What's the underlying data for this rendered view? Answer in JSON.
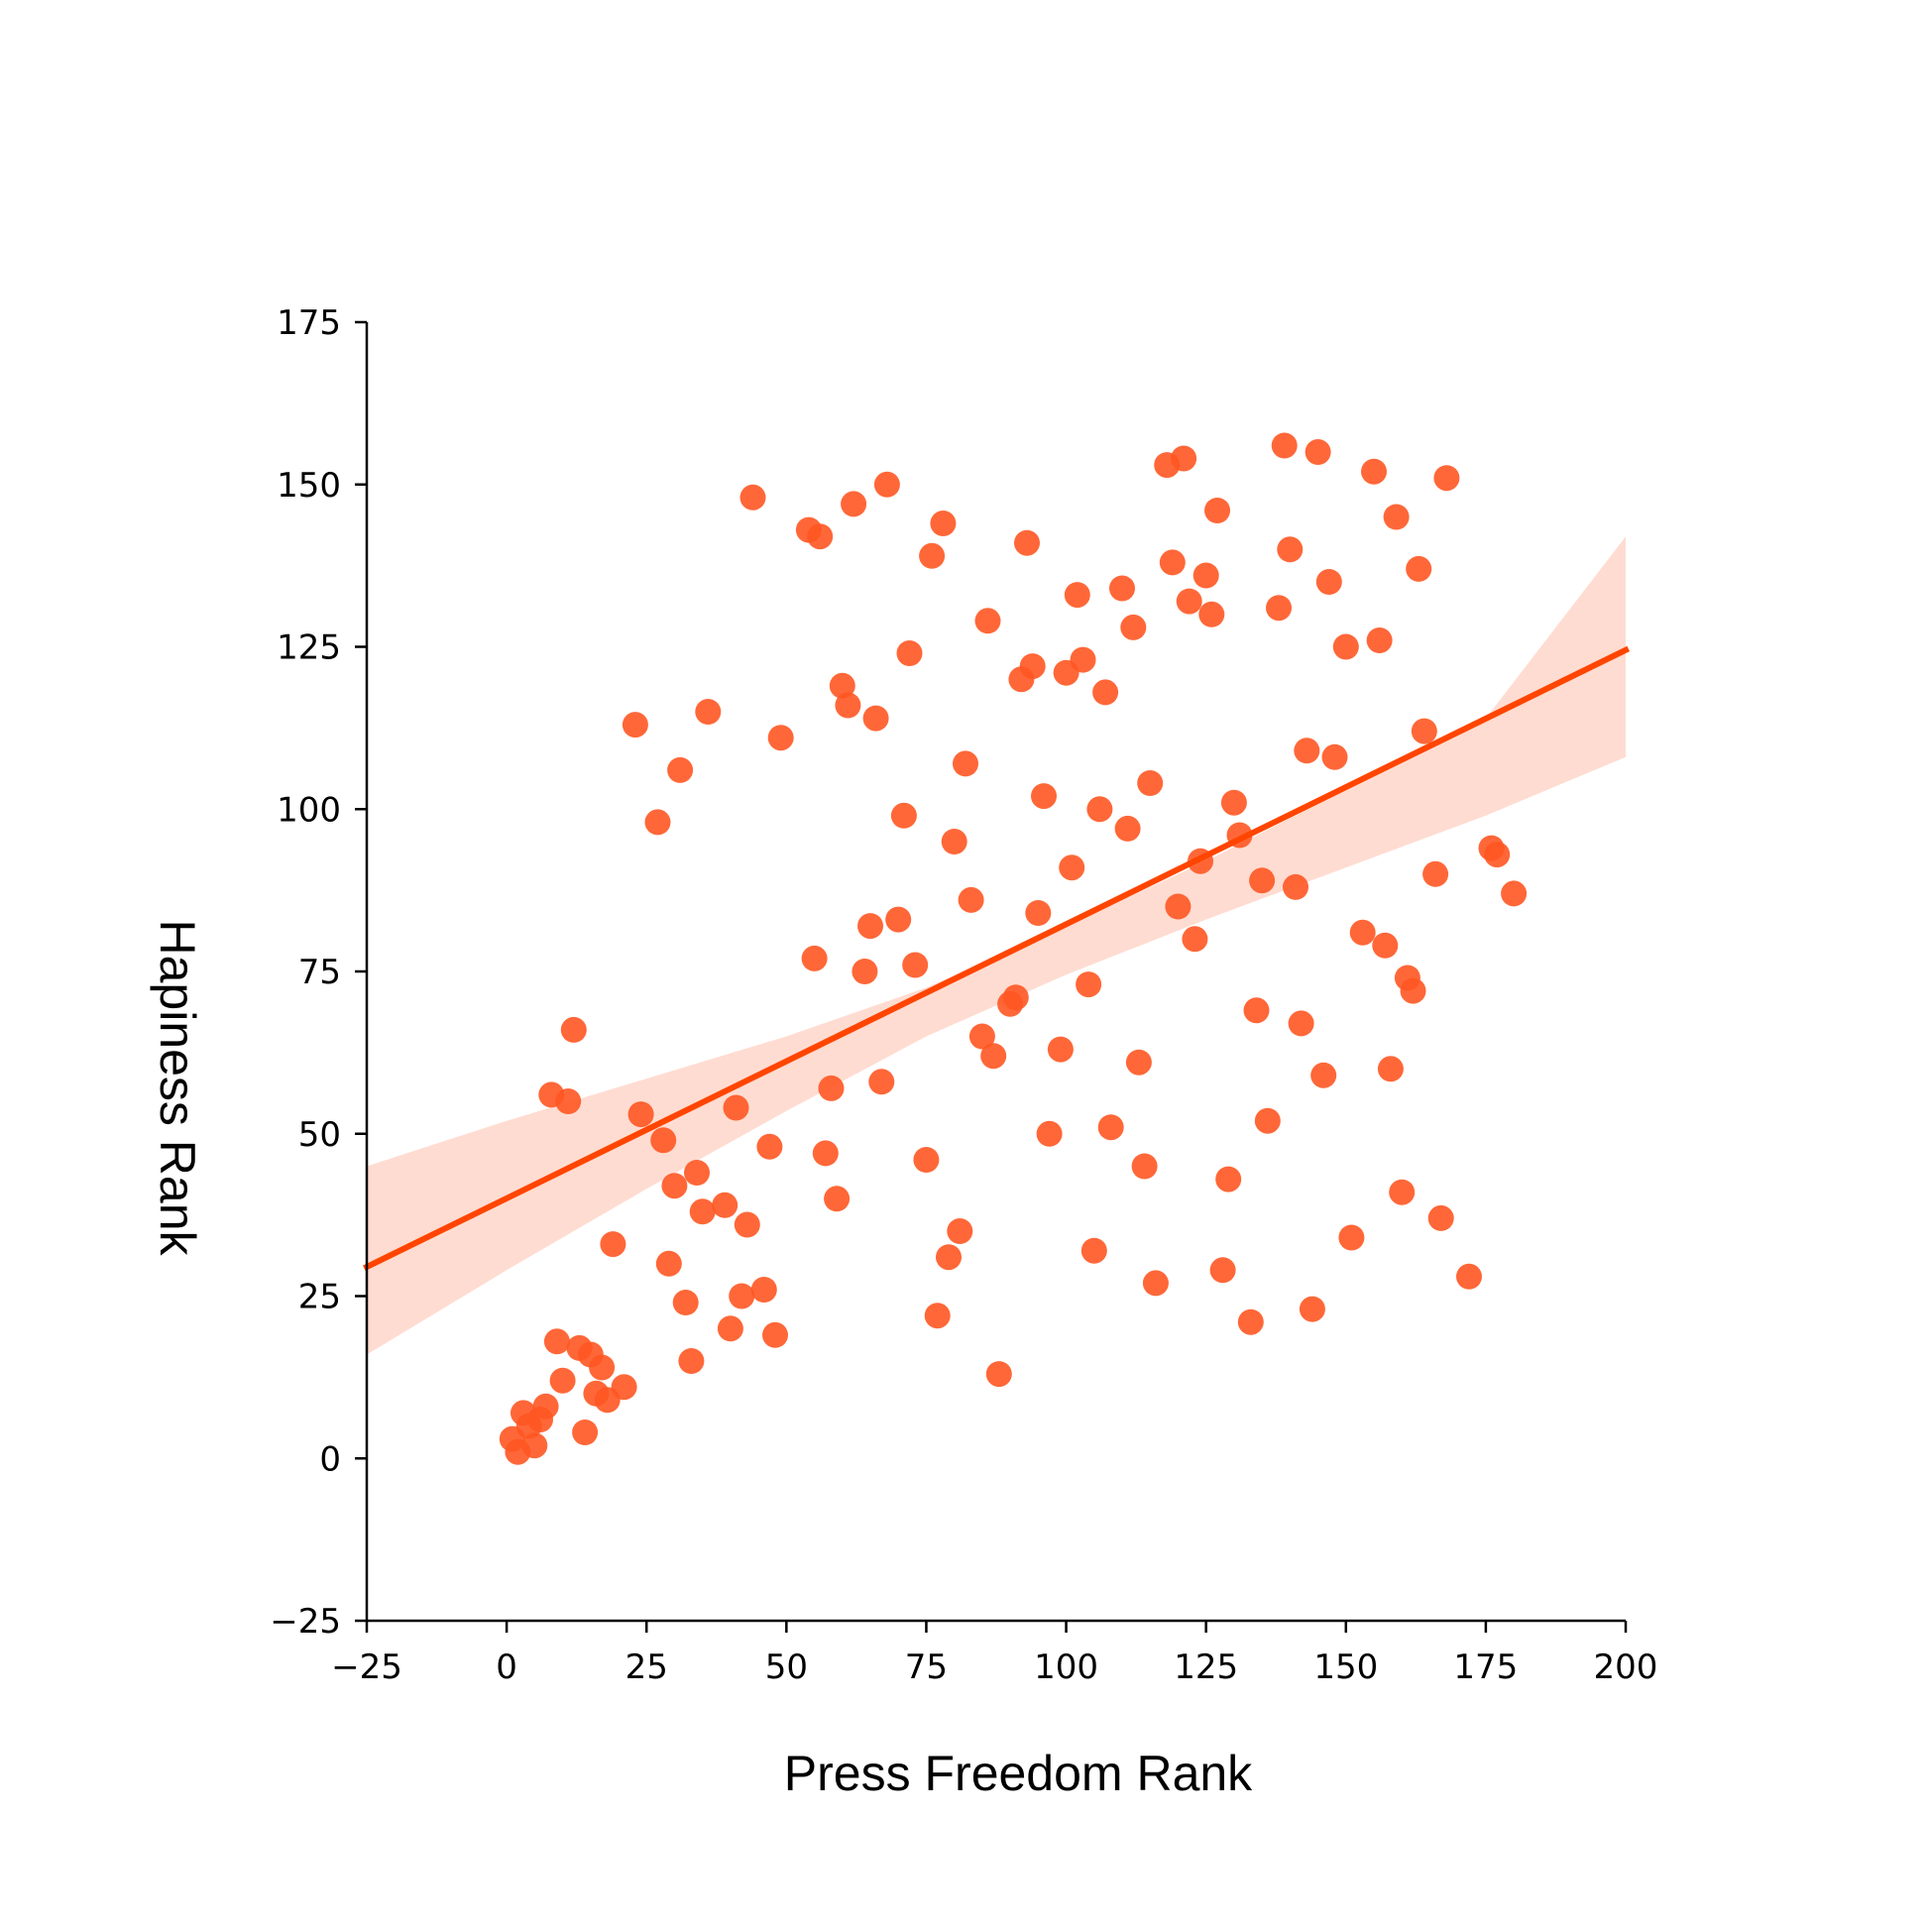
{
  "chart_data": {
    "type": "scatter",
    "title": "",
    "xlabel": "Press Freedom Rank",
    "ylabel": "Hapiness Rank",
    "xlim": [
      -25,
      200
    ],
    "ylim": [
      -25,
      175
    ],
    "xticks": [
      "−25",
      "0",
      "25",
      "50",
      "75",
      "100",
      "125",
      "150",
      "175",
      "200"
    ],
    "yticks": [
      "−25",
      "0",
      "25",
      "50",
      "75",
      "100",
      "125",
      "150",
      "175"
    ],
    "grid": false,
    "colors": {
      "points": "#ff5722",
      "regression_line": "#ff4500",
      "confidence_band": "#ffd6c9",
      "axis": "#000000"
    },
    "regression": {
      "line": [
        [
          -25,
          29.5
        ],
        [
          200,
          124.5
        ]
      ],
      "ci_upper": [
        [
          -25,
          45
        ],
        [
          0,
          52
        ],
        [
          25,
          58.5
        ],
        [
          50,
          65
        ],
        [
          75,
          72.5
        ],
        [
          100,
          82
        ],
        [
          125,
          92
        ],
        [
          150,
          103
        ],
        [
          175,
          114
        ],
        [
          200,
          142
        ]
      ],
      "ci_lower": [
        [
          -25,
          16
        ],
        [
          0,
          29
        ],
        [
          25,
          41.5
        ],
        [
          50,
          53.5
        ],
        [
          75,
          65
        ],
        [
          100,
          74.5
        ],
        [
          125,
          83
        ],
        [
          150,
          91
        ],
        [
          175,
          99
        ],
        [
          200,
          108
        ]
      ]
    },
    "points": [
      [
        1,
        3
      ],
      [
        2,
        1
      ],
      [
        3,
        7
      ],
      [
        4,
        5
      ],
      [
        5,
        2
      ],
      [
        6,
        6
      ],
      [
        7,
        8
      ],
      [
        8,
        56
      ],
      [
        9,
        18
      ],
      [
        10,
        12
      ],
      [
        11,
        55
      ],
      [
        12,
        66
      ],
      [
        13,
        17
      ],
      [
        14,
        4
      ],
      [
        15,
        16
      ],
      [
        16,
        10
      ],
      [
        17,
        14
      ],
      [
        18,
        9
      ],
      [
        19,
        33
      ],
      [
        21,
        11
      ],
      [
        23,
        113
      ],
      [
        24,
        53
      ],
      [
        27,
        98
      ],
      [
        28,
        49
      ],
      [
        29,
        30
      ],
      [
        30,
        42
      ],
      [
        31,
        106
      ],
      [
        32,
        24
      ],
      [
        33,
        15
      ],
      [
        34,
        44
      ],
      [
        35,
        38
      ],
      [
        36,
        115
      ],
      [
        39,
        39
      ],
      [
        40,
        20
      ],
      [
        41,
        54
      ],
      [
        42,
        25
      ],
      [
        43,
        36
      ],
      [
        44,
        148
      ],
      [
        46,
        26
      ],
      [
        47,
        48
      ],
      [
        48,
        19
      ],
      [
        49,
        111
      ],
      [
        54,
        143
      ],
      [
        55,
        77
      ],
      [
        56,
        142
      ],
      [
        57,
        47
      ],
      [
        58,
        57
      ],
      [
        59,
        40
      ],
      [
        60,
        119
      ],
      [
        61,
        116
      ],
      [
        62,
        147
      ],
      [
        64,
        75
      ],
      [
        65,
        82
      ],
      [
        66,
        114
      ],
      [
        67,
        58
      ],
      [
        68,
        150
      ],
      [
        70,
        83
      ],
      [
        71,
        99
      ],
      [
        72,
        124
      ],
      [
        73,
        76
      ],
      [
        75,
        46
      ],
      [
        76,
        139
      ],
      [
        77,
        22
      ],
      [
        78,
        144
      ],
      [
        79,
        31
      ],
      [
        80,
        95
      ],
      [
        81,
        35
      ],
      [
        82,
        107
      ],
      [
        83,
        86
      ],
      [
        85,
        65
      ],
      [
        86,
        129
      ],
      [
        87,
        62
      ],
      [
        88,
        13
      ],
      [
        90,
        70
      ],
      [
        91,
        71
      ],
      [
        92,
        120
      ],
      [
        93,
        141
      ],
      [
        94,
        122
      ],
      [
        95,
        84
      ],
      [
        96,
        102
      ],
      [
        97,
        50
      ],
      [
        99,
        63
      ],
      [
        100,
        121
      ],
      [
        101,
        91
      ],
      [
        102,
        133
      ],
      [
        103,
        123
      ],
      [
        104,
        73
      ],
      [
        105,
        32
      ],
      [
        106,
        100
      ],
      [
        107,
        118
      ],
      [
        108,
        51
      ],
      [
        110,
        134
      ],
      [
        111,
        97
      ],
      [
        112,
        128
      ],
      [
        113,
        61
      ],
      [
        114,
        45
      ],
      [
        115,
        104
      ],
      [
        116,
        27
      ],
      [
        118,
        153
      ],
      [
        119,
        138
      ],
      [
        120,
        85
      ],
      [
        121,
        154
      ],
      [
        122,
        132
      ],
      [
        123,
        80
      ],
      [
        124,
        92
      ],
      [
        125,
        136
      ],
      [
        126,
        130
      ],
      [
        127,
        146
      ],
      [
        128,
        29
      ],
      [
        129,
        43
      ],
      [
        130,
        101
      ],
      [
        131,
        96
      ],
      [
        133,
        21
      ],
      [
        134,
        69
      ],
      [
        135,
        89
      ],
      [
        136,
        52
      ],
      [
        138,
        131
      ],
      [
        139,
        156
      ],
      [
        140,
        140
      ],
      [
        141,
        88
      ],
      [
        142,
        67
      ],
      [
        143,
        109
      ],
      [
        144,
        23
      ],
      [
        145,
        155
      ],
      [
        146,
        59
      ],
      [
        147,
        135
      ],
      [
        148,
        108
      ],
      [
        150,
        125
      ],
      [
        151,
        34
      ],
      [
        153,
        81
      ],
      [
        155,
        152
      ],
      [
        156,
        126
      ],
      [
        157,
        79
      ],
      [
        158,
        60
      ],
      [
        159,
        145
      ],
      [
        160,
        41
      ],
      [
        161,
        74
      ],
      [
        162,
        72
      ],
      [
        163,
        137
      ],
      [
        164,
        112
      ],
      [
        166,
        90
      ],
      [
        167,
        37
      ],
      [
        168,
        151
      ],
      [
        172,
        28
      ],
      [
        176,
        94
      ],
      [
        177,
        93
      ],
      [
        180,
        87
      ]
    ]
  }
}
